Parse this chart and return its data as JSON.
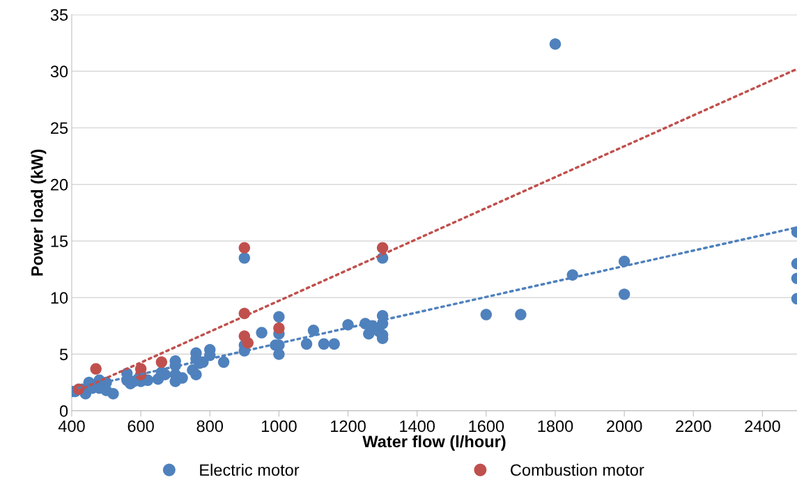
{
  "chart_data": {
    "type": "scatter",
    "xlabel": "Water flow (l/hour)",
    "ylabel": "Power load (kW)",
    "xlim": [
      400,
      2500
    ],
    "ylim": [
      0,
      35
    ],
    "xticks": [
      400,
      600,
      800,
      1000,
      1200,
      1400,
      1600,
      1800,
      2000,
      2200,
      2400
    ],
    "yticks": [
      0,
      5,
      10,
      15,
      20,
      25,
      30,
      35
    ],
    "grid": "y",
    "legend": "bottom",
    "marker": "circle",
    "series": [
      {
        "name": "Electric motor",
        "color": "#4f81bd",
        "x": [
          400,
          410,
          430,
          440,
          450,
          460,
          480,
          480,
          500,
          500,
          520,
          560,
          560,
          570,
          580,
          600,
          620,
          650,
          660,
          670,
          700,
          700,
          700,
          700,
          720,
          750,
          760,
          760,
          760,
          770,
          780,
          800,
          800,
          840,
          900,
          900,
          900,
          950,
          990,
          1000,
          1000,
          1000,
          1000,
          1080,
          1100,
          1130,
          1160,
          1200,
          1250,
          1260,
          1270,
          1290,
          1300,
          1300,
          1300,
          1300,
          1300,
          1600,
          1700,
          1800,
          1850,
          2000,
          2000,
          2500,
          2500,
          2500,
          2500
        ],
        "values": [
          1.7,
          1.7,
          1.9,
          1.5,
          2.5,
          2.0,
          2.7,
          2.0,
          2.5,
          1.8,
          1.5,
          3.3,
          2.7,
          2.4,
          2.6,
          2.6,
          2.7,
          2.8,
          3.4,
          3.2,
          4.4,
          4.0,
          3.2,
          2.6,
          2.9,
          3.6,
          5.1,
          4.6,
          3.2,
          4.2,
          4.3,
          5.4,
          4.9,
          4.3,
          13.5,
          5.8,
          5.3,
          6.9,
          5.8,
          8.3,
          6.8,
          5.8,
          5.0,
          5.9,
          7.1,
          5.9,
          5.9,
          7.6,
          7.7,
          6.8,
          7.5,
          7.0,
          13.5,
          8.4,
          7.7,
          6.7,
          6.4,
          8.5,
          8.5,
          32.4,
          12.0,
          13.2,
          10.3,
          15.8,
          13.0,
          11.7,
          9.9
        ]
      },
      {
        "name": "Combustion motor",
        "color": "#c0504d",
        "x": [
          420,
          470,
          600,
          600,
          660,
          900,
          900,
          900,
          910,
          1000,
          1300
        ],
        "values": [
          1.9,
          3.7,
          3.7,
          3.2,
          4.3,
          14.4,
          8.6,
          6.6,
          6.0,
          7.3,
          14.4
        ]
      },
      {
        "color": "#4f81bd",
        "type": "line",
        "line_style": "dotted",
        "marker": "none",
        "x": [
          420,
          2500
        ],
        "values": [
          2.0,
          16.2
        ]
      },
      {
        "color": "#c0504d",
        "type": "line",
        "line_style": "dotted",
        "marker": "none",
        "x": [
          420,
          2500
        ],
        "values": [
          1.8,
          30.2
        ]
      }
    ]
  }
}
